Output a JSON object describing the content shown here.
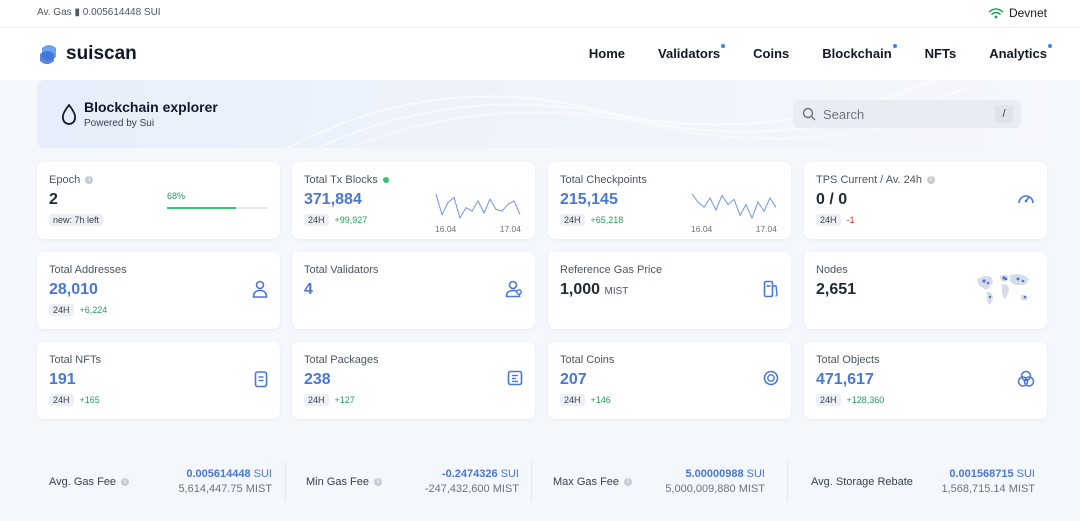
{
  "topbar": {
    "gas_label": "Av. Gas",
    "gas_value": "0.005614448 SUI",
    "network": "Devnet"
  },
  "header": {
    "brand": "suiscan",
    "nav": [
      {
        "label": "Home",
        "dot": false
      },
      {
        "label": "Validators",
        "dot": true
      },
      {
        "label": "Coins",
        "dot": false
      },
      {
        "label": "Blockchain",
        "dot": true
      },
      {
        "label": "NFTs",
        "dot": false
      },
      {
        "label": "Analytics",
        "dot": true
      }
    ]
  },
  "hero": {
    "title": "Blockchain explorer",
    "subtitle": "Powered by Sui",
    "search_placeholder": "Search",
    "search_shortcut": "/"
  },
  "stats": {
    "epoch": {
      "label": "Epoch",
      "value": "2",
      "sub": "new: 7h left",
      "progress_pct": "68%",
      "progress": 0.68
    },
    "tx_blocks": {
      "label": "Total Tx Blocks",
      "value": "371,884",
      "period": "24H",
      "delta": "+99,927",
      "date_start": "16.04",
      "date_end": "17.04",
      "spark": [
        50,
        38,
        45,
        48,
        36,
        42,
        40,
        46,
        39,
        47,
        41,
        40,
        44,
        46,
        38
      ]
    },
    "checkpoints": {
      "label": "Total Checkpoints",
      "value": "215,145",
      "period": "24H",
      "delta": "+65,218",
      "date_start": "16.04",
      "date_end": "17.04",
      "spark": [
        48,
        42,
        38,
        45,
        36,
        47,
        40,
        44,
        32,
        40,
        30,
        42,
        35,
        45,
        38
      ]
    },
    "tps": {
      "label": "TPS Current / Av. 24h",
      "value": "0 / 0",
      "period": "24H",
      "delta": "-1"
    },
    "addresses": {
      "label": "Total Addresses",
      "value": "28,010",
      "period": "24H",
      "delta": "+6,224"
    },
    "validators": {
      "label": "Total Validators",
      "value": "4"
    },
    "gas_price": {
      "label": "Reference Gas Price",
      "value": "1,000",
      "unit": "MIST"
    },
    "nodes": {
      "label": "Nodes",
      "value": "2,651"
    },
    "nfts": {
      "label": "Total NFTs",
      "value": "191",
      "period": "24H",
      "delta": "+165"
    },
    "packages": {
      "label": "Total Packages",
      "value": "238",
      "period": "24H",
      "delta": "+127"
    },
    "coins": {
      "label": "Total Coins",
      "value": "207",
      "period": "24H",
      "delta": "+146"
    },
    "objects": {
      "label": "Total Objects",
      "value": "471,617",
      "period": "24H",
      "delta": "+128,360"
    }
  },
  "fees": [
    {
      "label": "Avg. Gas Fee",
      "sui_value": "0.005614448",
      "sui_unit": "SUI",
      "mist": "5,614,447.75 MIST",
      "info": true
    },
    {
      "label": "Min Gas Fee",
      "sui_value": "-0.2474326",
      "sui_unit": "SUI",
      "mist": "-247,432,600 MIST",
      "info": true
    },
    {
      "label": "Max Gas Fee",
      "sui_value": "5.00000988",
      "sui_unit": "SUI",
      "mist": "5,000,009,880 MIST",
      "info": true
    },
    {
      "label": "Avg. Storage Rebate",
      "sui_value": "0.001568715",
      "sui_unit": "SUI",
      "mist": "1,568,715.14 MIST",
      "info": false
    }
  ],
  "colors": {
    "accent": "#4a76d9",
    "positive": "#22a058",
    "negative": "#dc2626",
    "nav_dot": "#3b82f6"
  }
}
